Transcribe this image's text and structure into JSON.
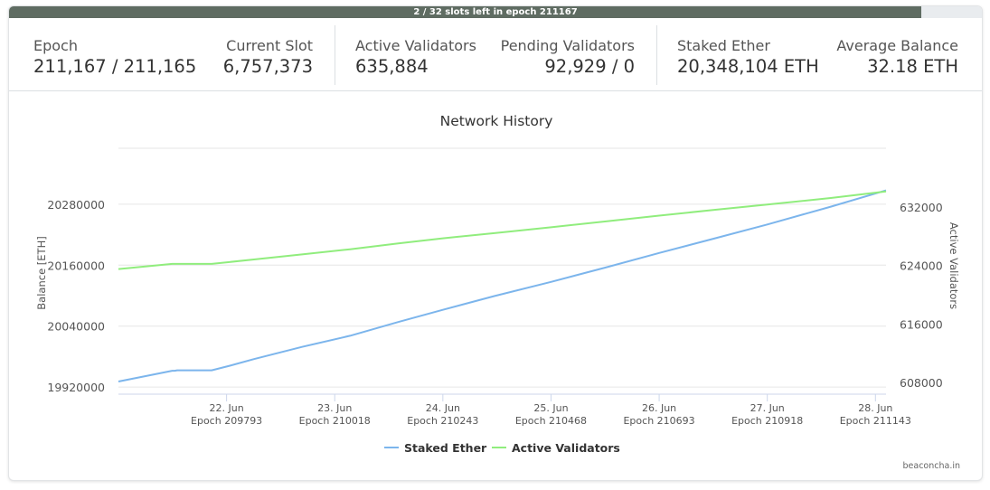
{
  "progress": {
    "label": "2 / 32 slots left in epoch 211167",
    "fraction": 0.9375
  },
  "stats": {
    "epoch": {
      "label": "Epoch",
      "value": "211,167 / 211,165"
    },
    "current_slot": {
      "label": "Current Slot",
      "value": "6,757,373"
    },
    "active_validators": {
      "label": "Active Validators",
      "value": "635,884"
    },
    "pending_validators": {
      "label": "Pending Validators",
      "value": "92,929 / 0"
    },
    "staked_ether": {
      "label": "Staked Ether",
      "value": "20,348,104 ETH"
    },
    "average_balance": {
      "label": "Average Balance",
      "value": "32.18 ETH"
    }
  },
  "chart_data": {
    "type": "line",
    "title": "Network History",
    "y_left_label": "Balance [ETH]",
    "y_right_label": "Active Validators",
    "y_left_ticks": [
      19920000,
      20040000,
      20160000,
      20280000
    ],
    "y_right_ticks": [
      608000,
      616000,
      624000,
      632000
    ],
    "y_left_range": [
      19906000,
      20390000
    ],
    "y_right_range": [
      606400,
      640000
    ],
    "x_ticks": [
      {
        "date": "22. Jun",
        "epoch": "Epoch 209793"
      },
      {
        "date": "23. Jun",
        "epoch": "Epoch 210018"
      },
      {
        "date": "24. Jun",
        "epoch": "Epoch 210243"
      },
      {
        "date": "25. Jun",
        "epoch": "Epoch 210468"
      },
      {
        "date": "26. Jun",
        "epoch": "Epoch 210693"
      },
      {
        "date": "27. Jun",
        "epoch": "Epoch 210918"
      },
      {
        "date": "28. Jun",
        "epoch": "Epoch 211143"
      }
    ],
    "x_range_epochs": [
      209568,
      211165
    ],
    "series": [
      {
        "name": "Staked Ether",
        "axis": "left",
        "color": "#7cb5ec",
        "points": [
          [
            209568,
            19931000
          ],
          [
            209680,
            19952000
          ],
          [
            209685,
            19952000
          ],
          [
            209690,
            19953000
          ],
          [
            209762,
            19953000
          ],
          [
            209800,
            19962000
          ],
          [
            209850,
            19975000
          ],
          [
            209950,
            19999000
          ],
          [
            210050,
            20021000
          ],
          [
            210150,
            20048000
          ],
          [
            210243,
            20072000
          ],
          [
            210350,
            20099000
          ],
          [
            210468,
            20127000
          ],
          [
            210580,
            20155000
          ],
          [
            210693,
            20184000
          ],
          [
            210810,
            20213000
          ],
          [
            210918,
            20240000
          ],
          [
            211050,
            20275000
          ],
          [
            211165,
            20307000
          ]
        ]
      },
      {
        "name": "Active Validators",
        "axis": "right",
        "color": "#90ed7d",
        "points": [
          [
            209568,
            623500
          ],
          [
            209680,
            624200
          ],
          [
            209762,
            624200
          ],
          [
            209850,
            624800
          ],
          [
            209950,
            625500
          ],
          [
            210050,
            626200
          ],
          [
            210150,
            627000
          ],
          [
            210243,
            627700
          ],
          [
            210350,
            628400
          ],
          [
            210468,
            629200
          ],
          [
            210580,
            630000
          ],
          [
            210693,
            630800
          ],
          [
            210810,
            631600
          ],
          [
            210918,
            632300
          ],
          [
            211050,
            633200
          ],
          [
            211165,
            634100
          ]
        ]
      }
    ],
    "legend": "bottom-center",
    "credit": "beaconcha.in"
  }
}
